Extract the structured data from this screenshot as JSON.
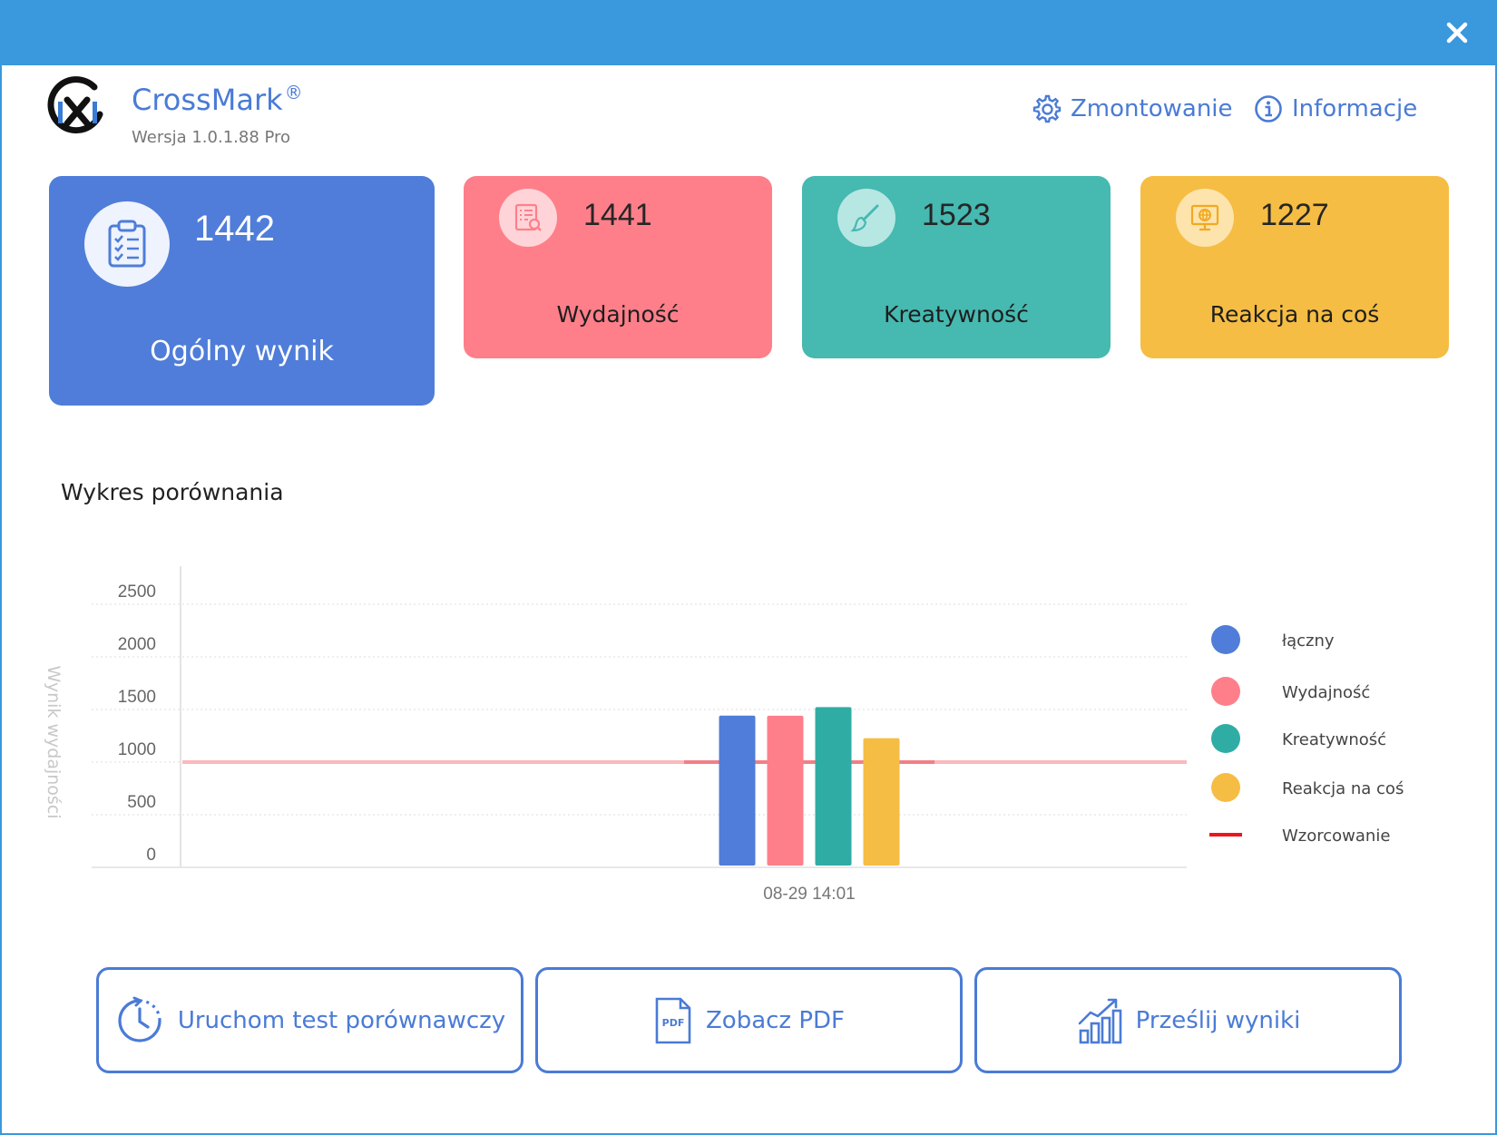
{
  "window": {
    "close_icon": "close-icon"
  },
  "header": {
    "app_name": "CrossMark",
    "registered_mark": "®",
    "version": "Wersja 1.0.1.88 Pro",
    "links": [
      {
        "label": "Zmontowanie",
        "icon": "gear-icon"
      },
      {
        "label": "Informacje",
        "icon": "info-icon"
      }
    ]
  },
  "scores": {
    "overall": {
      "value": "1442",
      "label": "Ogólny wynik",
      "icon": "clipboard-check-icon",
      "color": "#4f7dd9"
    },
    "performance": {
      "value": "1441",
      "label": "Wydajność",
      "icon": "document-search-icon",
      "color": "#fe7f8a"
    },
    "creativity": {
      "value": "1523",
      "label": "Kreatywność",
      "icon": "brush-icon",
      "color": "#46b9b1"
    },
    "reaction": {
      "value": "1227",
      "label": "Reakcja na coś",
      "icon": "globe-monitor-icon",
      "color": "#f6bd44"
    }
  },
  "chart_title": "Wykres porównania",
  "chart_data": {
    "type": "bar",
    "title": "",
    "ylabel": "Wynik wydajności",
    "xlabel": "",
    "ylim": [
      0,
      2500
    ],
    "yticks": [
      "2500",
      "2000",
      "1500",
      "1000",
      "500",
      "0"
    ],
    "categories": [
      "08-29 14:01"
    ],
    "series": [
      {
        "name": "łączny",
        "values": [
          1442
        ],
        "color": "#4f7dd9"
      },
      {
        "name": "Wydajność",
        "values": [
          1441
        ],
        "color": "#fe7f8a"
      },
      {
        "name": "Kreatywność",
        "values": [
          1523
        ],
        "color": "#2fada5"
      },
      {
        "name": "Reakcja na coś",
        "values": [
          1227
        ],
        "color": "#f6bd44"
      }
    ],
    "reference_line": {
      "name": "Wzorcowanie",
      "value": 1000,
      "color": "#f0141e"
    },
    "grid": true,
    "legend": "right"
  },
  "actions": [
    {
      "label": "Uruchom test porównawczy",
      "icon": "clock-icon"
    },
    {
      "label": "Zobacz PDF",
      "icon": "pdf-file-icon",
      "icon_text": "PDF"
    },
    {
      "label": "Prześlij wyniki",
      "icon": "bar-chart-upload-icon"
    }
  ]
}
